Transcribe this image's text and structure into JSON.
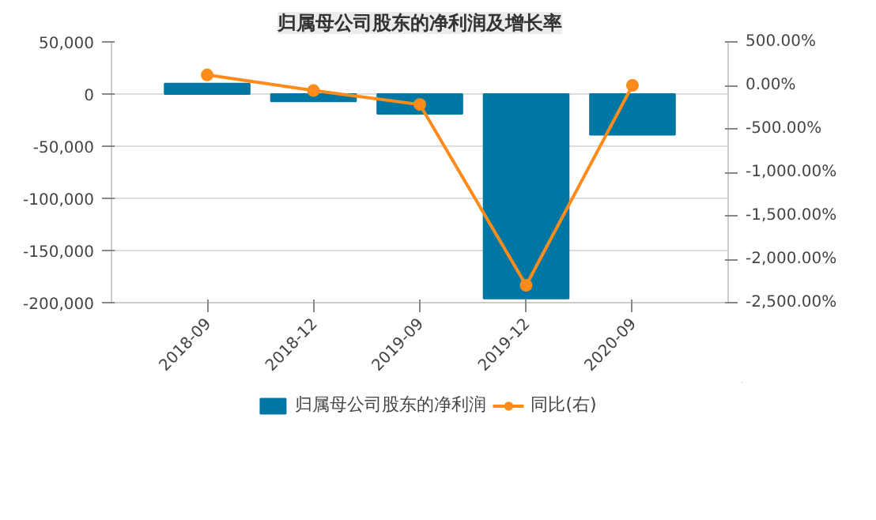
{
  "chart_data": {
    "type": "bar",
    "title": "归属母公司股东的净利润及增长率",
    "categories": [
      "2018-09",
      "2018-12",
      "2019-09",
      "2019-12",
      "2020-09"
    ],
    "series": [
      {
        "name": "归属母公司股东的净利润",
        "color": "#0077a3",
        "values": [
          10000,
          -7000,
          -19000,
          -196000,
          -39000
        ]
      },
      {
        "name": "同比(右)",
        "color": "#ff8c1a",
        "type": "line",
        "axis": "y2",
        "marker": "circle",
        "values": [
          120,
          -60,
          -220,
          -2300,
          0
        ]
      }
    ],
    "ylim": [
      -200000,
      50000
    ],
    "yticks": [
      {
        "value": 50000,
        "label": "50,000"
      },
      {
        "value": 0,
        "label": "0"
      },
      {
        "value": -50000,
        "label": "-50,000"
      },
      {
        "value": -100000,
        "label": "-100,000"
      },
      {
        "value": -150000,
        "label": "-150,000"
      },
      {
        "value": -200000,
        "label": "-200,000"
      }
    ],
    "y2lim": [
      -2500,
      500
    ],
    "y2ticks": [
      {
        "value": 500,
        "label": "500.00%"
      },
      {
        "value": 0,
        "label": "0.00%"
      },
      {
        "value": -500,
        "label": "-500.00%"
      },
      {
        "value": -1000,
        "label": "-1,000.00%"
      },
      {
        "value": -1500,
        "label": "-1,500.00%"
      },
      {
        "value": -2000,
        "label": "-2,000.00%"
      },
      {
        "value": -2500,
        "label": "-2,500.00%"
      }
    ],
    "grid": "y",
    "legend": "bottom"
  }
}
